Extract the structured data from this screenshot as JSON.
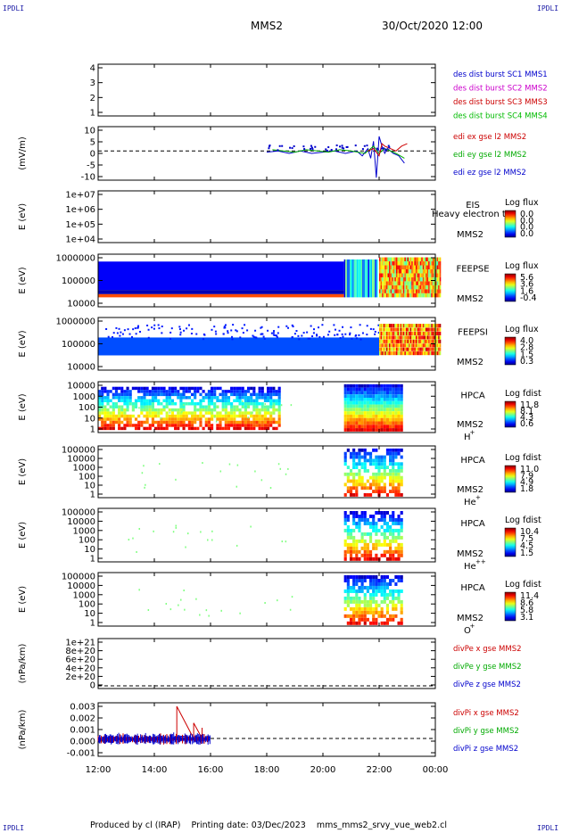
{
  "corner_labels": {
    "tl": "IPDLI",
    "tr": "IPDLI",
    "bl": "IPDLI",
    "br": "IPDLI"
  },
  "header": {
    "mission": "MMS2",
    "datetime": "30/Oct/2020 12:00"
  },
  "footer": {
    "text": "Produced by cl (IRAP)    Printing date: 03/Dec/2023    mms_mms2_srvy_vue_web2.cl"
  },
  "chart_data": [
    {
      "type": "line",
      "panel": "sc-bursts",
      "ylabel": "",
      "yticks": [
        "4",
        "3",
        "2",
        "1"
      ],
      "legend": [
        {
          "text": "des dist burst SC1 MMS1",
          "color": "#0000cc"
        },
        {
          "text": "des dist burst SC2 MMS2",
          "color": "#cc00cc"
        },
        {
          "text": "des dist burst SC3 MMS3",
          "color": "#cc0000"
        },
        {
          "text": "des dist burst SC4 MMS4",
          "color": "#00bb00"
        }
      ],
      "series": []
    },
    {
      "type": "line",
      "panel": "edi-efield",
      "ylabel": "(mV/m)",
      "yticks": [
        "10",
        "5",
        "0",
        "-5",
        "-10"
      ],
      "ylim": [
        -12,
        10
      ],
      "legend": [
        {
          "text": "edi ex gse l2 MMS2",
          "color": "#cc0000"
        },
        {
          "text": "edi ey gse l2 MMS2",
          "color": "#00aa00"
        },
        {
          "text": "edi ez gse l2 MMS2",
          "color": "#0000cc"
        }
      ],
      "series": [
        {
          "color": "#0000cc",
          "x": [
            18.0,
            18.4,
            18.8,
            19.2,
            19.6,
            20.0,
            20.4,
            20.8,
            21.2,
            21.4,
            21.6,
            21.7,
            21.8,
            21.9,
            22.0,
            22.1,
            22.2,
            22.3,
            22.5,
            22.7,
            22.9
          ],
          "y": [
            -0.5,
            0,
            -1,
            0,
            -1,
            -0.5,
            0,
            -1,
            0,
            -2,
            1,
            -3,
            4,
            -11,
            6,
            2,
            -1,
            1,
            -1,
            -2,
            -5
          ]
        },
        {
          "color": "#00aa00",
          "x": [
            18.2,
            18.6,
            19.0,
            19.4,
            19.8,
            20.2,
            20.6,
            21.0,
            21.5,
            21.8,
            22.0,
            22.2,
            22.4,
            22.6,
            22.9
          ],
          "y": [
            0.5,
            0,
            -0.5,
            0.5,
            0,
            -0.5,
            0.5,
            0,
            -1,
            2,
            -1,
            1,
            0,
            -1,
            -3
          ]
        },
        {
          "color": "#cc0000",
          "x": [
            21.6,
            21.8,
            22.0,
            22.1,
            22.2,
            22.4,
            22.6,
            22.8,
            23.0
          ],
          "y": [
            0,
            1,
            -2,
            3,
            2,
            1,
            0,
            2,
            3
          ]
        }
      ]
    },
    {
      "type": "heatmap",
      "panel": "eis",
      "ylabel": "E (eV)",
      "yticks": [
        "1e+07",
        "1e+06",
        "1e+05",
        "1e+04"
      ],
      "instrument": "EIS",
      "sc": "MMS2",
      "overlay": "Heavy electron to",
      "cbar_title": "Log flux",
      "cbar_ticks": [
        "0.0",
        "0.0",
        "0.0",
        "0.0"
      ]
    },
    {
      "type": "heatmap",
      "panel": "feepse",
      "ylabel": "E (eV)",
      "yticks": [
        "1000000",
        "100000",
        "10000"
      ],
      "instrument": "FEEPSE",
      "sc": "MMS2",
      "cbar_title": "Log flux",
      "cbar_ticks": [
        "5.6",
        "3.6",
        "1.6",
        "-0.4"
      ]
    },
    {
      "type": "heatmap",
      "panel": "feepsi",
      "ylabel": "E (eV)",
      "yticks": [
        "1000000",
        "100000",
        "10000"
      ],
      "instrument": "FEEPSI",
      "sc": "MMS2",
      "cbar_title": "Log flux",
      "cbar_ticks": [
        "4.0",
        "2.8",
        "1.5",
        "0.3"
      ]
    },
    {
      "type": "heatmap",
      "panel": "hpca-h",
      "ylabel": "E (eV)",
      "yticks": [
        "10000",
        "1000",
        "100",
        "10",
        "1"
      ],
      "instrument": "HPCA",
      "sc": "MMS2",
      "species": "H",
      "charge": "+",
      "cbar_title": "Log fdist",
      "cbar_ticks": [
        "11.8",
        "8.1",
        "4.3",
        "0.6"
      ]
    },
    {
      "type": "heatmap",
      "panel": "hpca-he",
      "ylabel": "E (eV)",
      "yticks": [
        "100000",
        "10000",
        "1000",
        "100",
        "10",
        "1"
      ],
      "instrument": "HPCA",
      "sc": "MMS2",
      "species": "He",
      "charge": "+",
      "cbar_title": "Log fdist",
      "cbar_ticks": [
        "11.0",
        "7.9",
        "4.9",
        "1.8"
      ]
    },
    {
      "type": "heatmap",
      "panel": "hpca-he2",
      "ylabel": "E (eV)",
      "yticks": [
        "100000",
        "10000",
        "1000",
        "100",
        "10",
        "1"
      ],
      "instrument": "HPCA",
      "sc": "MMS2",
      "species": "He",
      "charge": "++",
      "cbar_title": "Log fdist",
      "cbar_ticks": [
        "10.4",
        "7.5",
        "4.5",
        "1.5"
      ]
    },
    {
      "type": "heatmap",
      "panel": "hpca-o",
      "ylabel": "E (eV)",
      "yticks": [
        "100000",
        "10000",
        "1000",
        "100",
        "10",
        "1"
      ],
      "instrument": "HPCA",
      "sc": "MMS2",
      "species": "O",
      "charge": "+",
      "cbar_title": "Log fdist",
      "cbar_ticks": [
        "11.4",
        "8.6",
        "5.8",
        "3.1"
      ]
    },
    {
      "type": "line",
      "panel": "divpe",
      "ylabel": "(nPa/km)",
      "yticks": [
        "1e+21",
        "8e+20",
        "6e+20",
        "4e+20",
        "2e+20",
        "0"
      ],
      "legend": [
        {
          "text": "divPe x gse MMS2",
          "color": "#cc0000"
        },
        {
          "text": "divPe y gse MMS2",
          "color": "#00aa00"
        },
        {
          "text": "divPe z gse MMS2",
          "color": "#0000cc"
        }
      ],
      "series": []
    },
    {
      "type": "line",
      "panel": "divpi",
      "ylabel": "(nPa/km)",
      "yticks": [
        "0.003",
        "0.002",
        "0.001",
        "0.000",
        "-0.001"
      ],
      "ylim": [
        -0.0015,
        0.003
      ],
      "legend": [
        {
          "text": "divPi x gse MMS2",
          "color": "#cc0000"
        },
        {
          "text": "divPi y gse MMS2",
          "color": "#00aa00"
        },
        {
          "text": "divPi z gse MMS2",
          "color": "#0000cc"
        }
      ],
      "series": [
        {
          "name": "divPi z gse MMS2",
          "color": "#0000cc",
          "x": [
            12.0,
            12.5,
            13.0,
            13.5,
            14.0,
            14.5,
            15.0,
            15.5,
            16.0
          ],
          "y": [
            0.0,
            0.0001,
            0.0,
            -0.0001,
            0.0001,
            0.0,
            0.0002,
            0.0,
            0.0001
          ]
        },
        {
          "name": "divPi x gse MMS2",
          "color": "#cc0000",
          "x": [
            14.8,
            14.8,
            15.4,
            15.4,
            15.7,
            15.7
          ],
          "y": [
            0.0,
            0.0027,
            0.0,
            0.0013,
            0.0,
            0.0009
          ]
        }
      ]
    }
  ],
  "xaxis": {
    "ticks": [
      "12:00",
      "14:00",
      "16:00",
      "18:00",
      "20:00",
      "22:00",
      "00:00"
    ]
  }
}
